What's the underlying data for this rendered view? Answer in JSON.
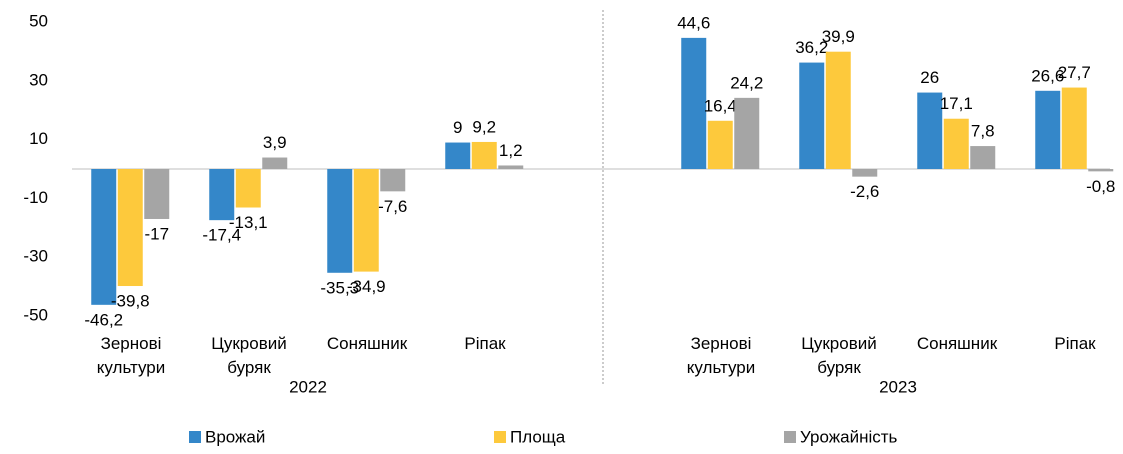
{
  "chart_data": {
    "type": "bar",
    "groups": [
      "2022",
      "2023"
    ],
    "categories": [
      "Зернові культури",
      "Цукровий буряк",
      "Соняшник",
      "Ріпак",
      "Зернові культури",
      "Цукровий буряк",
      "Соняшник",
      "Ріпак"
    ],
    "series": [
      {
        "name": "Врожай",
        "color": "#3487c9",
        "values": [
          -46.2,
          -17.4,
          -35.3,
          9,
          44.6,
          36.2,
          26,
          26.6
        ],
        "value_labels": [
          "-46,2",
          "-17,4",
          "-35,3",
          "9",
          "44,6",
          "36,2",
          "26",
          "26,6"
        ]
      },
      {
        "name": "Площа",
        "color": "#fdc93c",
        "values": [
          -39.8,
          -13.1,
          -34.9,
          9.2,
          16.4,
          39.9,
          17.1,
          27.7
        ],
        "value_labels": [
          "-39,8",
          "-13,1",
          "-34,9",
          "9,2",
          "16,4",
          "39,9",
          "17,1",
          "27,7"
        ]
      },
      {
        "name": "Урожайність",
        "color": "#a5a5a5",
        "values": [
          -17,
          3.9,
          -7.6,
          1.2,
          24.2,
          -2.6,
          7.8,
          -0.8
        ],
        "value_labels": [
          "-17",
          "3,9",
          "-7,6",
          "1,2",
          "24,2",
          "-2,6",
          "7,8",
          "-0,8"
        ]
      }
    ],
    "ylim": [
      -50,
      50
    ],
    "yticks": [
      -50,
      -30,
      -10,
      10,
      30,
      50
    ],
    "grid": false,
    "legend": "bottom"
  }
}
